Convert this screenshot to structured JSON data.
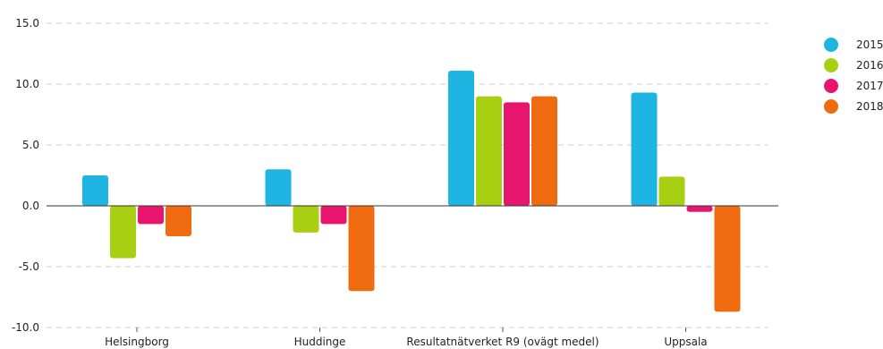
{
  "chart_data": {
    "type": "bar",
    "categories": [
      "Helsingborg",
      "Huddinge",
      "Resultatnätverket R9 (ovägt medel)",
      "Uppsala"
    ],
    "series": [
      {
        "name": "2015",
        "values": [
          2.5,
          3.0,
          11.1,
          9.3
        ],
        "color": "#1fb5e3"
      },
      {
        "name": "2016",
        "values": [
          -4.3,
          -2.2,
          9.0,
          2.4
        ],
        "color": "#a9cf12"
      },
      {
        "name": "2017",
        "values": [
          -1.5,
          -1.5,
          8.5,
          -0.5
        ],
        "color": "#e8156f"
      },
      {
        "name": "2018",
        "values": [
          -2.5,
          -7.0,
          9.0,
          -8.7
        ],
        "color": "#f06a0f"
      }
    ],
    "y_ticks": [
      "15.0",
      "10.0",
      "5.0",
      "0.0",
      "-5.0",
      "-10.0"
    ],
    "ylim": [
      -10,
      15
    ],
    "grid": "dashed horizontal",
    "legend_position": "right"
  }
}
